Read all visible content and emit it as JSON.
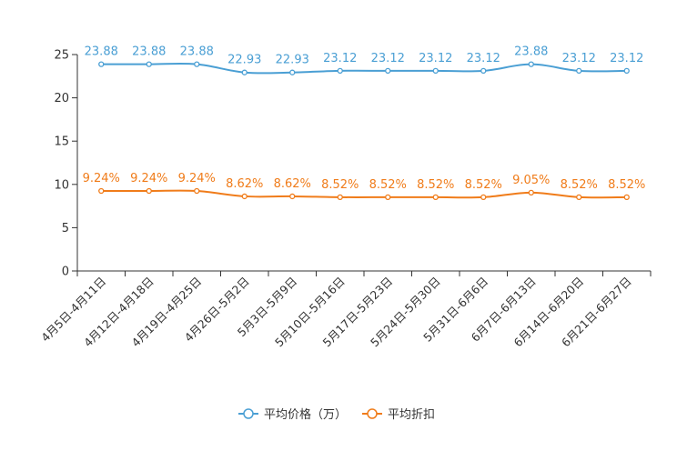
{
  "chart_data": {
    "type": "line",
    "categories": [
      "4月5日-4月11日",
      "4月12日-4月18日",
      "4月19日-4月25日",
      "4月26日-5月2日",
      "5月3日-5月9日",
      "5月10日-5月16日",
      "5月17日-5月23日",
      "5月24日-5月30日",
      "5月31日-6月6日",
      "6月7日-6月13日",
      "6月14日-6月20日",
      "6月21日-6月27日"
    ],
    "series": [
      {
        "name": "平均价格（万）",
        "color": "#4a9fd4",
        "values": [
          23.88,
          23.88,
          23.88,
          22.93,
          22.93,
          23.12,
          23.12,
          23.12,
          23.12,
          23.88,
          23.12,
          23.12
        ],
        "labels": [
          "23.88",
          "23.88",
          "23.88",
          "22.93",
          "22.93",
          "23.12",
          "23.12",
          "23.12",
          "23.12",
          "23.88",
          "23.12",
          "23.12"
        ]
      },
      {
        "name": "平均折扣",
        "color": "#f07c1a",
        "values": [
          9.24,
          9.24,
          9.24,
          8.62,
          8.62,
          8.52,
          8.52,
          8.52,
          8.52,
          9.05,
          8.52,
          8.52
        ],
        "labels": [
          "9.24%",
          "9.24%",
          "9.24%",
          "8.62%",
          "8.62%",
          "8.52%",
          "8.52%",
          "8.52%",
          "8.52%",
          "9.05%",
          "8.52%",
          "8.52%"
        ]
      }
    ],
    "yticks": [
      0,
      5,
      10,
      15,
      20,
      25
    ],
    "ylim": [
      0,
      25
    ],
    "legend_position": "bottom-center",
    "smooth": true,
    "title": "",
    "xlabel": "",
    "ylabel": ""
  }
}
